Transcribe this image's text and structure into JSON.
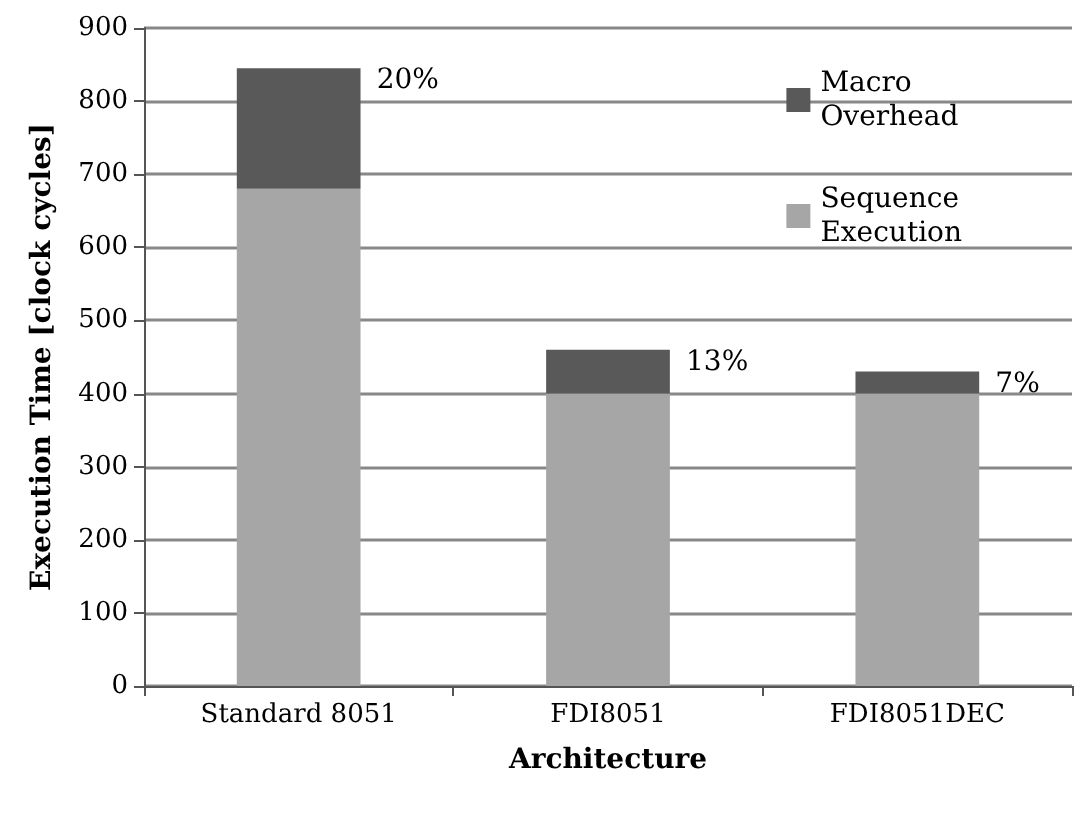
{
  "chart_data": {
    "type": "bar",
    "xlabel": "Architecture",
    "ylabel": "Execution Time [clock cycles]",
    "categories": [
      "Standard 8051",
      "FDI8051",
      "FDI8051DEC"
    ],
    "stacked": true,
    "series": [
      {
        "name": "Sequence Execution",
        "color": "#a6a6a6",
        "values": [
          680,
          400,
          400
        ]
      },
      {
        "name": "Macro Overhead",
        "color": "#595959",
        "values": [
          165,
          60,
          30
        ]
      }
    ],
    "ylim": [
      0,
      900
    ],
    "yticks": [
      0,
      100,
      200,
      300,
      400,
      500,
      600,
      700,
      800,
      900
    ],
    "grid": "y",
    "legend": "top right",
    "annotations": [
      {
        "text": "20%",
        "x": "Standard 8051",
        "y": 845
      },
      {
        "text": "13%",
        "x": "FDI8051",
        "y": 460
      },
      {
        "text": "7%",
        "x": "FDI8051DEC",
        "y": 430
      }
    ]
  }
}
